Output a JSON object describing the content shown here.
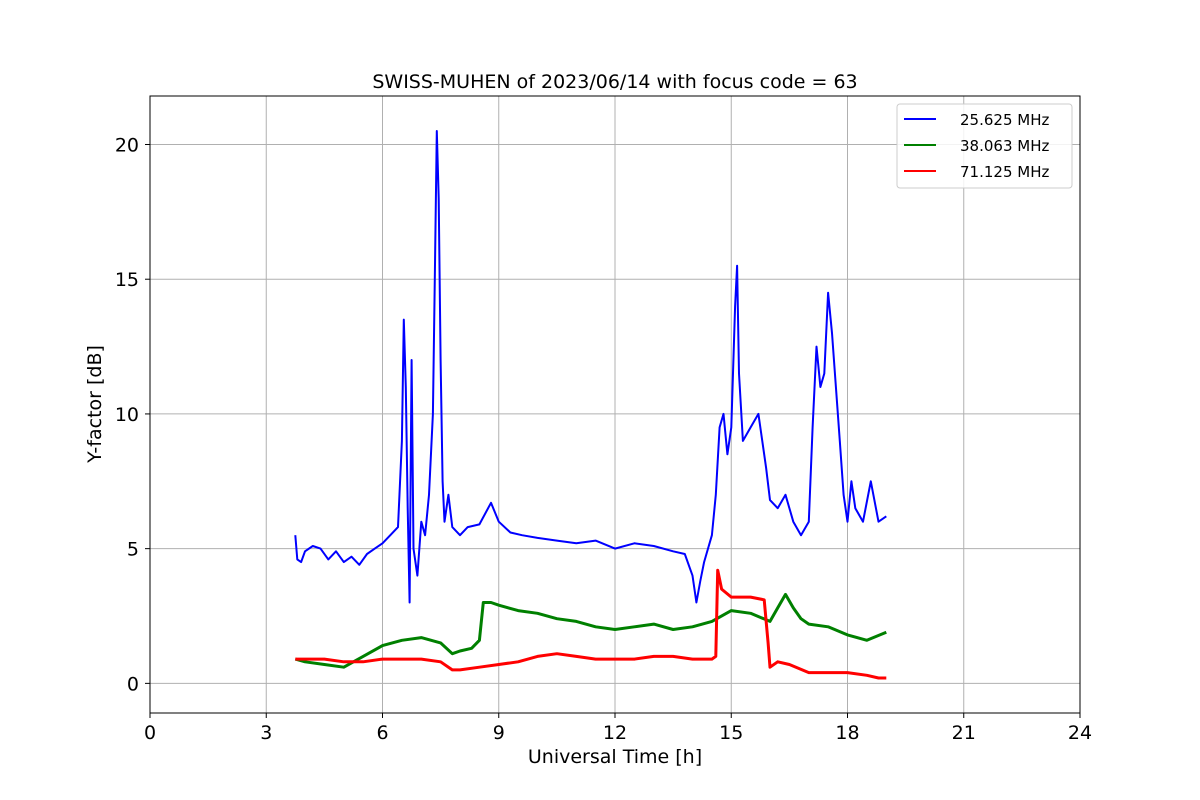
{
  "chart_data": {
    "type": "line",
    "title": "SWISS-MUHEN of 2023/06/14 with focus code = 63",
    "xlabel": "Universal Time [h]",
    "ylabel": "Y-factor [dB]",
    "xlim": [
      0,
      24
    ],
    "ylim": [
      -1.1,
      21.8
    ],
    "xticks": [
      "0",
      "3",
      "6",
      "9",
      "12",
      "15",
      "18",
      "21",
      "24"
    ],
    "yticks": [
      "0",
      "5",
      "10",
      "15",
      "20"
    ],
    "grid": true,
    "legend_position": "top-right",
    "series": [
      {
        "name": "25.625 MHz",
        "color": "#0000ff",
        "x": [
          3.75,
          3.8,
          3.9,
          4.0,
          4.2,
          4.4,
          4.6,
          4.8,
          5.0,
          5.2,
          5.4,
          5.6,
          5.8,
          6.0,
          6.2,
          6.4,
          6.5,
          6.55,
          6.6,
          6.65,
          6.7,
          6.75,
          6.8,
          6.9,
          7.0,
          7.1,
          7.2,
          7.3,
          7.35,
          7.4,
          7.45,
          7.5,
          7.55,
          7.6,
          7.7,
          7.8,
          8.0,
          8.2,
          8.5,
          8.8,
          9.0,
          9.3,
          9.6,
          10.0,
          10.5,
          11.0,
          11.5,
          12.0,
          12.5,
          13.0,
          13.5,
          13.8,
          14.0,
          14.1,
          14.2,
          14.3,
          14.5,
          14.6,
          14.7,
          14.8,
          14.9,
          15.0,
          15.1,
          15.15,
          15.2,
          15.3,
          15.5,
          15.7,
          15.9,
          16.0,
          16.2,
          16.4,
          16.6,
          16.8,
          17.0,
          17.1,
          17.2,
          17.3,
          17.4,
          17.5,
          17.6,
          17.7,
          17.8,
          17.9,
          18.0,
          18.1,
          18.2,
          18.4,
          18.6,
          18.8,
          19.0
        ],
        "values": [
          5.5,
          4.6,
          4.5,
          4.9,
          5.1,
          5.0,
          4.6,
          4.9,
          4.5,
          4.7,
          4.4,
          4.8,
          5.0,
          5.2,
          5.5,
          5.8,
          9.0,
          13.5,
          11.0,
          6.5,
          3.0,
          12.0,
          5.0,
          4.0,
          6.0,
          5.5,
          7.0,
          10.0,
          15.0,
          20.5,
          18.0,
          12.0,
          7.5,
          6.0,
          7.0,
          5.8,
          5.5,
          5.8,
          5.9,
          6.7,
          6.0,
          5.6,
          5.5,
          5.4,
          5.3,
          5.2,
          5.3,
          5.0,
          5.2,
          5.1,
          4.9,
          4.8,
          4.0,
          3.0,
          3.8,
          4.5,
          5.5,
          7.0,
          9.5,
          10.0,
          8.5,
          9.5,
          14.0,
          15.5,
          11.5,
          9.0,
          9.5,
          10.0,
          8.0,
          6.8,
          6.5,
          7.0,
          6.0,
          5.5,
          6.0,
          9.5,
          12.5,
          11.0,
          11.5,
          14.5,
          13.0,
          11.0,
          9.0,
          7.0,
          6.0,
          7.5,
          6.5,
          6.0,
          7.5,
          6.0,
          6.2
        ]
      },
      {
        "name": "38.063 MHz",
        "color": "#008000",
        "x": [
          3.75,
          4.0,
          4.5,
          5.0,
          5.5,
          6.0,
          6.5,
          7.0,
          7.5,
          7.8,
          8.0,
          8.3,
          8.5,
          8.6,
          8.8,
          9.0,
          9.5,
          10.0,
          10.5,
          11.0,
          11.5,
          12.0,
          12.5,
          13.0,
          13.5,
          14.0,
          14.5,
          15.0,
          15.5,
          16.0,
          16.2,
          16.4,
          16.6,
          16.8,
          17.0,
          17.5,
          18.0,
          18.5,
          19.0
        ],
        "values": [
          0.9,
          0.8,
          0.7,
          0.6,
          1.0,
          1.4,
          1.6,
          1.7,
          1.5,
          1.1,
          1.2,
          1.3,
          1.6,
          3.0,
          3.0,
          2.9,
          2.7,
          2.6,
          2.4,
          2.3,
          2.1,
          2.0,
          2.1,
          2.2,
          2.0,
          2.1,
          2.3,
          2.7,
          2.6,
          2.3,
          2.8,
          3.3,
          2.8,
          2.4,
          2.2,
          2.1,
          1.8,
          1.6,
          1.9
        ]
      },
      {
        "name": "71.125 MHz",
        "color": "#ff0000",
        "x": [
          3.75,
          4.0,
          4.5,
          5.0,
          5.5,
          6.0,
          6.5,
          7.0,
          7.5,
          7.8,
          8.0,
          8.5,
          9.0,
          9.5,
          10.0,
          10.5,
          11.0,
          11.5,
          12.0,
          12.5,
          13.0,
          13.5,
          14.0,
          14.5,
          14.6,
          14.65,
          14.75,
          15.0,
          15.5,
          15.85,
          15.95,
          16.0,
          16.2,
          16.5,
          17.0,
          17.5,
          18.0,
          18.5,
          18.8,
          19.0
        ],
        "values": [
          0.9,
          0.9,
          0.9,
          0.8,
          0.8,
          0.9,
          0.9,
          0.9,
          0.8,
          0.5,
          0.5,
          0.6,
          0.7,
          0.8,
          1.0,
          1.1,
          1.0,
          0.9,
          0.9,
          0.9,
          1.0,
          1.0,
          0.9,
          0.9,
          1.0,
          4.2,
          3.5,
          3.2,
          3.2,
          3.1,
          1.5,
          0.6,
          0.8,
          0.7,
          0.4,
          0.4,
          0.4,
          0.3,
          0.2,
          0.2
        ]
      }
    ]
  }
}
